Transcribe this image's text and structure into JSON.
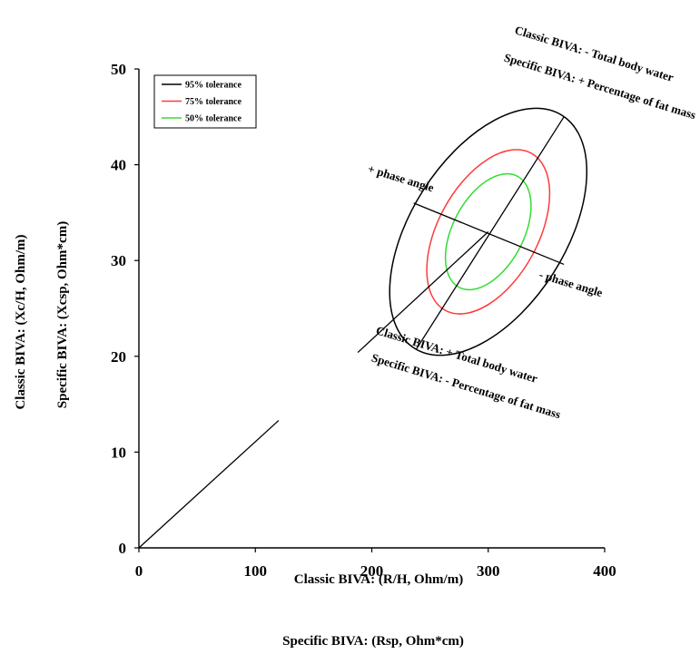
{
  "chart_data": {
    "type": "scatter",
    "x_axis": {
      "title_lines": [
        "Classic BIVA: (R/H, Ohm/m)",
        "Specific BIVA: (Rsp, Ohm*cm)"
      ],
      "range": [
        0,
        400
      ],
      "ticks": [
        0,
        100,
        200,
        300,
        400
      ]
    },
    "y_axis": {
      "title_lines": [
        "Classic BIVA: (Xc/H, Ohm/m)",
        "Specific BIVA: (Xcsp, Ohm*cm)"
      ],
      "range": [
        0,
        50
      ],
      "ticks": [
        0,
        10,
        20,
        30,
        40,
        50
      ]
    },
    "grid": false,
    "legend": {
      "position": "top-left",
      "entries": [
        {
          "label": "95% tolerance",
          "color": "#000000"
        },
        {
          "label": "75% tolerance",
          "color": "#ff3b3b"
        },
        {
          "label": "50% tolerance",
          "color": "#33dd33"
        }
      ]
    },
    "ellipses": [
      {
        "label": "95% tolerance",
        "color": "#000000",
        "center": [
          300,
          33
        ],
        "major_end_top": [
          365,
          45
        ],
        "major_end_bottom": [
          238,
          20.7
        ],
        "minor_half_length": 85
      },
      {
        "label": "75% tolerance",
        "color": "#ff3b3b",
        "center": [
          300,
          33
        ],
        "major_end_top": [
          337,
          41.2
        ],
        "major_end_bottom": [
          263,
          24.8
        ],
        "minor_half_length": 55
      },
      {
        "label": "50% tolerance",
        "color": "#33dd33",
        "center": [
          300,
          33
        ],
        "major_end_top": [
          325,
          38.8
        ],
        "major_end_bottom": [
          275,
          27.2
        ],
        "minor_half_length": 39
      }
    ],
    "lines": [
      {
        "name": "ellipse-major-axis",
        "color": "#000000",
        "points": [
          [
            238,
            20.7
          ],
          [
            365,
            45
          ]
        ]
      },
      {
        "name": "ellipse-minor-axis",
        "color": "#000000",
        "points": [
          [
            236,
            36
          ],
          [
            365,
            29.6
          ]
        ]
      },
      {
        "name": "reference-vector-upper",
        "color": "#000000",
        "points": [
          [
            188,
            20.4
          ],
          [
            300,
            33
          ]
        ]
      },
      {
        "name": "reference-vector-lower",
        "color": "#000000",
        "points": [
          [
            0,
            0
          ],
          [
            120,
            13.3
          ]
        ]
      }
    ],
    "annotations": [
      {
        "text": "Classic BIVA:  - Total body water",
        "at": [
          390,
          51.2
        ],
        "angle": 17
      },
      {
        "text": "Specific BIVA: + Percentage of fat mass",
        "at": [
          395,
          47.8
        ],
        "angle": 17
      },
      {
        "text": "+ phase angle",
        "at": [
          224,
          38.2
        ],
        "angle": 17
      },
      {
        "text": "- phase angle",
        "at": [
          370,
          27.2
        ],
        "angle": 17
      },
      {
        "text": "Classic BIVA:  + Total body water",
        "at": [
          272,
          19.8
        ],
        "angle": 17
      },
      {
        "text": "Specific BIVA: - Percentage of fat mass",
        "at": [
          280,
          16.5
        ],
        "angle": 17
      }
    ]
  }
}
